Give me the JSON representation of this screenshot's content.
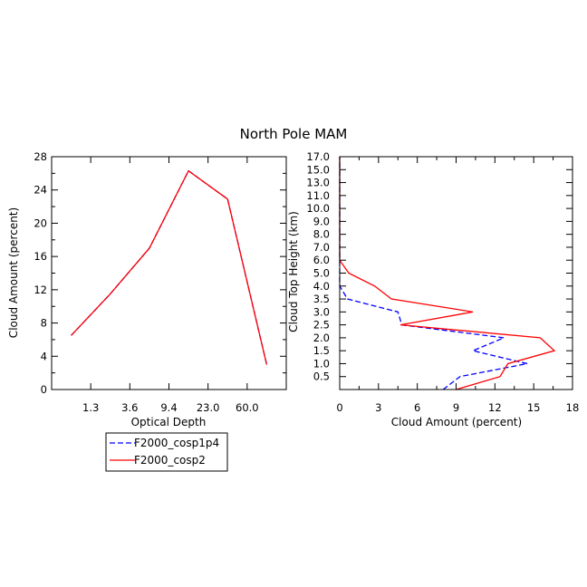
{
  "title": "North Pole MAM",
  "colors": {
    "cosp1p4": "#0000ff",
    "cosp2": "#ff0000",
    "axes": "#000000",
    "background": "#ffffff"
  },
  "legend": {
    "placement": "below-left-panel",
    "entries": [
      {
        "label": "F2000_cosp1p4",
        "color": "#0000ff",
        "style": "dashed"
      },
      {
        "label": "F2000_cosp2",
        "color": "#ff0000",
        "style": "solid"
      }
    ]
  },
  "chart_data": [
    {
      "type": "line",
      "xlabel": "Optical Depth",
      "ylabel": "Cloud Amount (percent)",
      "ylim": [
        0,
        28
      ],
      "y_ticks": [
        0,
        4,
        8,
        12,
        16,
        20,
        24,
        28
      ],
      "x_tick_labels": [
        "1.3",
        "3.6",
        "9.4",
        "23.0",
        "60.0"
      ],
      "x_bin_positions": [
        0,
        1,
        2,
        3,
        4,
        5,
        6
      ],
      "xlim": [
        0,
        6
      ],
      "x_tick_positions": [
        0.5,
        1.5,
        2.5,
        3.5,
        4.5,
        5.5
      ],
      "series": [
        {
          "name": "F2000_cosp1p4",
          "values": [
            6.5,
            11.5,
            17.0,
            26.3,
            22.9,
            3.0
          ]
        },
        {
          "name": "F2000_cosp2",
          "values": [
            6.5,
            11.5,
            17.0,
            26.3,
            22.9,
            3.0
          ]
        }
      ]
    },
    {
      "type": "line",
      "xlabel": "Cloud Amount (percent)",
      "ylabel": "Cloud Top Height (km)",
      "xlim": [
        0,
        18
      ],
      "x_ticks": [
        0,
        3,
        6,
        9,
        12,
        15,
        18
      ],
      "y_tick_labels": [
        "0.5",
        "1.0",
        "1.5",
        "2.0",
        "2.5",
        "3.0",
        "3.5",
        "4.0",
        "5.0",
        "6.0",
        "7.0",
        "8.0",
        "9.0",
        "10.0",
        "11.0",
        "13.0",
        "15.0",
        "17.0"
      ],
      "y_levels": [
        0.0,
        0.5,
        1.0,
        1.5,
        2.0,
        2.5,
        3.0,
        3.5,
        4.0,
        5.0,
        6.0,
        7.0,
        8.0,
        9.0,
        10.0,
        11.0,
        13.0,
        15.0,
        17.0
      ],
      "series": [
        {
          "name": "F2000_cosp1p4",
          "x": [
            8.0,
            9.3,
            14.5,
            10.3,
            12.7,
            4.8,
            4.5,
            0.6,
            0.0,
            0.0,
            0.0,
            0.0,
            0.0,
            0.0,
            0.0,
            0.0,
            0.0,
            0.0,
            0.0
          ]
        },
        {
          "name": "F2000_cosp2",
          "x": [
            9.0,
            12.4,
            13.0,
            16.6,
            15.5,
            4.7,
            10.3,
            4.0,
            2.7,
            0.7,
            0.0,
            0.0,
            0.0,
            0.0,
            0.0,
            0.0,
            0.0,
            0.0,
            0.0
          ]
        }
      ]
    }
  ]
}
